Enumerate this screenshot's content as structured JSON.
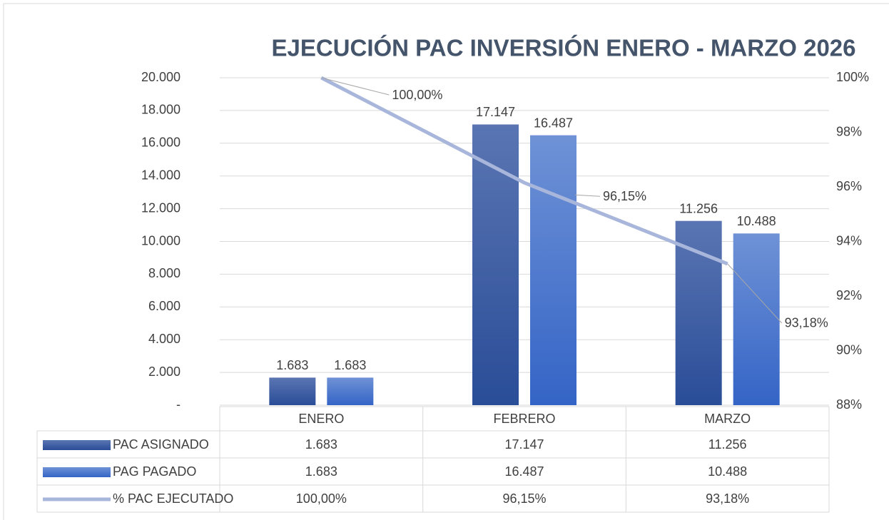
{
  "chart_data": {
    "type": "bar",
    "title": "EJECUCIÓN PAC INVERSIÓN ENERO - MARZO 2026",
    "categories": [
      "ENERO",
      "FEBRERO",
      "MARZO"
    ],
    "series": [
      {
        "name": "PAC ASIGNADO",
        "type": "bar",
        "color": "#3a5aa3",
        "values": [
          1683,
          17147,
          11256
        ],
        "value_labels": [
          "1.683",
          "17.147",
          "11.256"
        ]
      },
      {
        "name": "PAG PAGADO",
        "type": "bar",
        "color": "#4673cc",
        "values": [
          1683,
          16487,
          10488
        ],
        "value_labels": [
          "1.683",
          "16.487",
          "10.488"
        ]
      },
      {
        "name": "% PAC EJECUTADO",
        "type": "line",
        "axis": "y2",
        "color": "#a9b6db",
        "values": [
          100,
          96.15,
          93.18
        ],
        "value_labels": [
          "100,00%",
          "96,15%",
          "93,18%"
        ]
      }
    ],
    "ylim": [
      0,
      20000
    ],
    "yticks": [
      {
        "value": 0,
        "label": "-"
      },
      {
        "value": 2000,
        "label": "2.000"
      },
      {
        "value": 4000,
        "label": "4.000"
      },
      {
        "value": 6000,
        "label": "6.000"
      },
      {
        "value": 8000,
        "label": "8.000"
      },
      {
        "value": 10000,
        "label": "10.000"
      },
      {
        "value": 12000,
        "label": "12.000"
      },
      {
        "value": 14000,
        "label": "14.000"
      },
      {
        "value": 16000,
        "label": "16.000"
      },
      {
        "value": 18000,
        "label": "18.000"
      },
      {
        "value": 20000,
        "label": "20.000"
      }
    ],
    "y2lim": [
      88,
      100
    ],
    "y2ticks": [
      {
        "value": 88,
        "label": "88%"
      },
      {
        "value": 90,
        "label": "90%"
      },
      {
        "value": 92,
        "label": "92%"
      },
      {
        "value": 94,
        "label": "94%"
      },
      {
        "value": 96,
        "label": "96%"
      },
      {
        "value": 98,
        "label": "98%"
      },
      {
        "value": 100,
        "label": "100%"
      }
    ],
    "grid": true,
    "data_table": true
  }
}
